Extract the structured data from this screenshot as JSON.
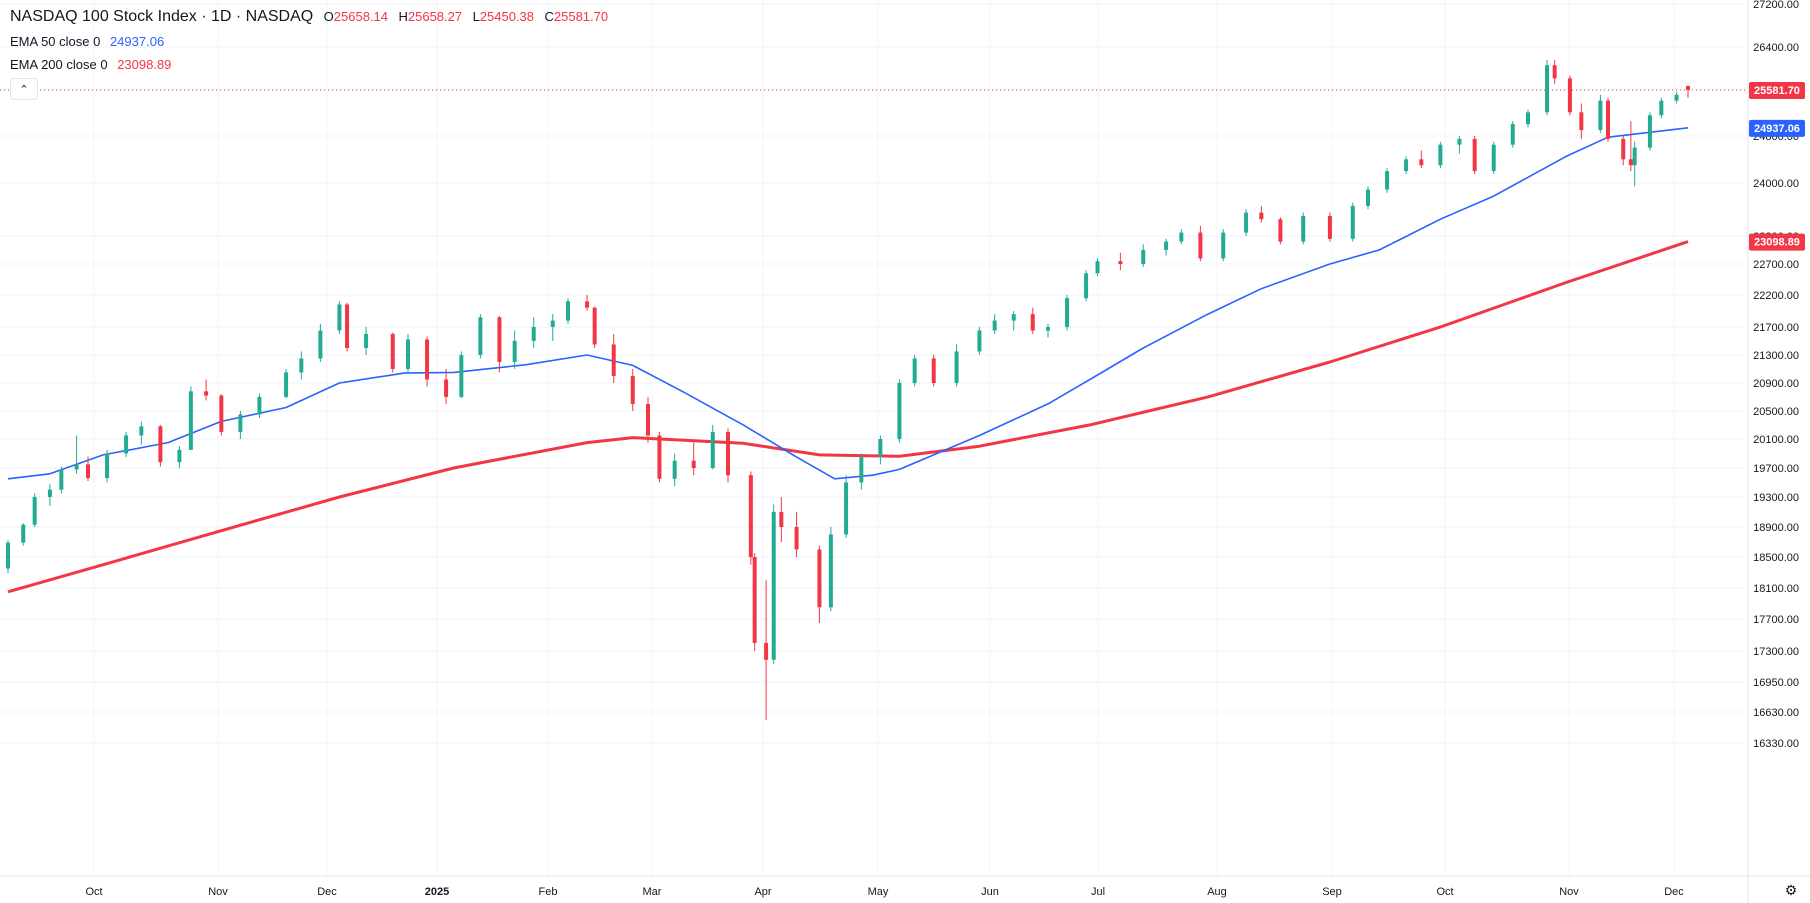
{
  "legend": {
    "title": "NASDAQ 100 Stock Index · 1D · NASDAQ",
    "o_key": "O",
    "o_val": "25658.14",
    "h_key": "H",
    "h_val": "25658.27",
    "l_key": "L",
    "l_val": "25450.38",
    "c_key": "C",
    "c_val": "25581.70",
    "ema50_label": "EMA 50 close 0",
    "ema50_value": "24937.06",
    "ema200_label": "EMA 200 close 0",
    "ema200_value": "23098.89"
  },
  "icons": {
    "collapse": "chevron-up-icon",
    "settings": "gear-icon"
  },
  "colors": {
    "up": "#22ab94",
    "down": "#f23645",
    "ema50": "#2962ff",
    "ema200": "#f23645",
    "grid": "#f0f3fa",
    "last_price_line": "#f23645"
  },
  "chart_data": {
    "type": "candlestick",
    "symbol": "NASDAQ 100 Stock Index",
    "interval": "1D",
    "exchange": "NASDAQ",
    "y_axis_ticks": [
      27200,
      26400,
      25600,
      24800,
      24000,
      23200,
      22700,
      22200,
      21700,
      21300,
      20900,
      20500,
      20100,
      19700,
      19300,
      18900,
      18500,
      18100,
      17700,
      17300,
      16950,
      16630,
      16330
    ],
    "y_axis_tick_labels": [
      "27200.00",
      "26400.00",
      "25600.00",
      "24800.00",
      "24000.00",
      "23200.00",
      "22700.00",
      "22200.00",
      "21700.00",
      "21300.00",
      "20900.00",
      "20500.00",
      "20100.00",
      "19700.00",
      "19300.00",
      "18900.00",
      "18500.00",
      "18100.00",
      "17700.00",
      "17300.00",
      "16950.00",
      "16630.00",
      "16330.00"
    ],
    "y_axis_log_scale": true,
    "x_axis_labels": [
      "Oct",
      "Nov",
      "Dec",
      "2025",
      "Feb",
      "Mar",
      "Apr",
      "May",
      "Jun",
      "Jul",
      "Aug",
      "Sep",
      "Oct",
      "Nov",
      "Dec"
    ],
    "last_price": 25581.7,
    "series": [
      {
        "name": "EMA 50 close 0",
        "type": "line",
        "last_value": 24937.06,
        "points": [
          [
            "2024-09-20",
            19550
          ],
          [
            "2024-10-01",
            19620
          ],
          [
            "2024-10-15",
            19880
          ],
          [
            "2024-11-01",
            20050
          ],
          [
            "2024-11-15",
            20350
          ],
          [
            "2024-12-02",
            20550
          ],
          [
            "2024-12-16",
            20900
          ],
          [
            "2025-01-02",
            21040
          ],
          [
            "2025-01-15",
            21050
          ],
          [
            "2025-02-03",
            21160
          ],
          [
            "2025-02-19",
            21300
          ],
          [
            "2025-03-03",
            21150
          ],
          [
            "2025-03-17",
            20750
          ],
          [
            "2025-04-01",
            20300
          ],
          [
            "2025-04-15",
            19850
          ],
          [
            "2025-04-25",
            19550
          ],
          [
            "2025-05-05",
            19600
          ],
          [
            "2025-05-12",
            19680
          ],
          [
            "2025-06-02",
            20150
          ],
          [
            "2025-06-20",
            20600
          ],
          [
            "2025-07-01",
            20950
          ],
          [
            "2025-07-15",
            21400
          ],
          [
            "2025-08-01",
            21900
          ],
          [
            "2025-08-15",
            22300
          ],
          [
            "2025-09-02",
            22700
          ],
          [
            "2025-09-15",
            22950
          ],
          [
            "2025-10-01",
            23450
          ],
          [
            "2025-10-15",
            23800
          ],
          [
            "2025-11-03",
            24450
          ],
          [
            "2025-11-14",
            24780
          ],
          [
            "2025-12-05",
            24937.06
          ]
        ]
      },
      {
        "name": "EMA 200 close 0",
        "type": "line",
        "last_value": 23098.89,
        "points": [
          [
            "2024-09-20",
            18050
          ],
          [
            "2024-10-15",
            18400
          ],
          [
            "2024-11-15",
            18850
          ],
          [
            "2024-12-16",
            19300
          ],
          [
            "2025-01-15",
            19700
          ],
          [
            "2025-02-19",
            20050
          ],
          [
            "2025-03-03",
            20120
          ],
          [
            "2025-04-01",
            20040
          ],
          [
            "2025-04-21",
            19880
          ],
          [
            "2025-05-12",
            19860
          ],
          [
            "2025-06-02",
            20000
          ],
          [
            "2025-07-01",
            20300
          ],
          [
            "2025-08-01",
            20700
          ],
          [
            "2025-09-02",
            21200
          ],
          [
            "2025-10-01",
            21700
          ],
          [
            "2025-11-03",
            22400
          ],
          [
            "2025-12-05",
            23098.89
          ]
        ]
      }
    ],
    "candles": [
      [
        "2024-09-20",
        18350,
        18720,
        18290,
        18690
      ],
      [
        "2024-09-24",
        18690,
        18950,
        18650,
        18930
      ],
      [
        "2024-09-27",
        18930,
        19350,
        18900,
        19300
      ],
      [
        "2024-10-01",
        19300,
        19480,
        19180,
        19400
      ],
      [
        "2024-10-04",
        19400,
        19720,
        19350,
        19680
      ],
      [
        "2024-10-08",
        19680,
        20150,
        19620,
        19750
      ],
      [
        "2024-10-11",
        19750,
        19860,
        19520,
        19560
      ],
      [
        "2024-10-16",
        19560,
        19950,
        19500,
        19900
      ],
      [
        "2024-10-21",
        19900,
        20200,
        19850,
        20150
      ],
      [
        "2024-10-25",
        20150,
        20350,
        20020,
        20280
      ],
      [
        "2024-10-30",
        20280,
        20300,
        19720,
        19780
      ],
      [
        "2024-11-04",
        19780,
        20000,
        19700,
        19950
      ],
      [
        "2024-11-07",
        19950,
        20850,
        19950,
        20780
      ],
      [
        "2024-11-11",
        20780,
        20950,
        20650,
        20720
      ],
      [
        "2024-11-15",
        20720,
        20740,
        20150,
        20200
      ],
      [
        "2024-11-20",
        20200,
        20500,
        20100,
        20450
      ],
      [
        "2024-11-25",
        20450,
        20750,
        20400,
        20700
      ],
      [
        "2024-12-02",
        20700,
        21100,
        20680,
        21050
      ],
      [
        "2024-12-06",
        21050,
        21350,
        20950,
        21250
      ],
      [
        "2024-12-11",
        21250,
        21750,
        21200,
        21650
      ],
      [
        "2024-12-16",
        21650,
        22100,
        21600,
        22050
      ],
      [
        "2024-12-18",
        22050,
        22080,
        21350,
        21400
      ],
      [
        "2024-12-23",
        21400,
        21700,
        21300,
        21600
      ],
      [
        "2024-12-30",
        21600,
        21620,
        21050,
        21100
      ],
      [
        "2025-01-03",
        21100,
        21600,
        21050,
        21520
      ],
      [
        "2025-01-08",
        21520,
        21560,
        20850,
        20950
      ],
      [
        "2025-01-13",
        20950,
        21100,
        20600,
        20700
      ],
      [
        "2025-01-17",
        20700,
        21350,
        20680,
        21300
      ],
      [
        "2025-01-22",
        21300,
        21900,
        21250,
        21850
      ],
      [
        "2025-01-27",
        21850,
        21870,
        21050,
        21200
      ],
      [
        "2025-01-31",
        21200,
        21650,
        21100,
        21500
      ],
      [
        "2025-02-05",
        21500,
        21850,
        21400,
        21700
      ],
      [
        "2025-02-10",
        21700,
        21900,
        21500,
        21800
      ],
      [
        "2025-02-14",
        21800,
        22150,
        21750,
        22100
      ],
      [
        "2025-02-19",
        22100,
        22200,
        21950,
        22000
      ],
      [
        "2025-02-21",
        22000,
        22020,
        21400,
        21450
      ],
      [
        "2025-02-26",
        21450,
        21600,
        20900,
        21000
      ],
      [
        "2025-03-03",
        21000,
        21100,
        20500,
        20600
      ],
      [
        "2025-03-07",
        20600,
        20700,
        20050,
        20150
      ],
      [
        "2025-03-10",
        20150,
        20200,
        19500,
        19550
      ],
      [
        "2025-03-14",
        19550,
        19900,
        19450,
        19800
      ],
      [
        "2025-03-19",
        19800,
        20050,
        19600,
        19700
      ],
      [
        "2025-03-24",
        19700,
        20300,
        19680,
        20200
      ],
      [
        "2025-03-28",
        20200,
        20250,
        19500,
        19600
      ],
      [
        "2025-04-03",
        19600,
        19650,
        18400,
        18500
      ],
      [
        "2025-04-04",
        18500,
        18550,
        17300,
        17400
      ],
      [
        "2025-04-07",
        17400,
        18200,
        16550,
        17200
      ],
      [
        "2025-04-09",
        17200,
        19200,
        17150,
        19100
      ],
      [
        "2025-04-11",
        19100,
        19300,
        18700,
        18900
      ],
      [
        "2025-04-15",
        18900,
        19100,
        18500,
        18600
      ],
      [
        "2025-04-21",
        18600,
        18650,
        17650,
        17850
      ],
      [
        "2025-04-24",
        17850,
        18900,
        17800,
        18800
      ],
      [
        "2025-04-28",
        18800,
        19600,
        18750,
        19500
      ],
      [
        "2025-05-02",
        19500,
        19900,
        19400,
        19850
      ],
      [
        "2025-05-07",
        19850,
        20150,
        19750,
        20100
      ],
      [
        "2025-05-12",
        20100,
        20950,
        20050,
        20900
      ],
      [
        "2025-05-16",
        20900,
        21300,
        20850,
        21250
      ],
      [
        "2025-05-21",
        21250,
        21300,
        20850,
        20900
      ],
      [
        "2025-05-27",
        20900,
        21450,
        20850,
        21350
      ],
      [
        "2025-06-02",
        21350,
        21700,
        21300,
        21650
      ],
      [
        "2025-06-06",
        21650,
        21900,
        21600,
        21800
      ],
      [
        "2025-06-11",
        21800,
        21950,
        21650,
        21900
      ],
      [
        "2025-06-16",
        21900,
        22000,
        21600,
        21650
      ],
      [
        "2025-06-20",
        21650,
        21750,
        21550,
        21700
      ],
      [
        "2025-06-25",
        21700,
        22200,
        21650,
        22150
      ],
      [
        "2025-06-30",
        22150,
        22600,
        22100,
        22550
      ],
      [
        "2025-07-03",
        22550,
        22800,
        22500,
        22750
      ],
      [
        "2025-07-09",
        22750,
        22900,
        22600,
        22700
      ],
      [
        "2025-07-15",
        22700,
        23050,
        22650,
        22950
      ],
      [
        "2025-07-21",
        22950,
        23150,
        22850,
        23100
      ],
      [
        "2025-07-25",
        23100,
        23300,
        23050,
        23250
      ],
      [
        "2025-07-30",
        23250,
        23350,
        22750,
        22800
      ],
      [
        "2025-08-05",
        22800,
        23300,
        22750,
        23250
      ],
      [
        "2025-08-11",
        23250,
        23600,
        23200,
        23550
      ],
      [
        "2025-08-15",
        23550,
        23650,
        23400,
        23450
      ],
      [
        "2025-08-20",
        23450,
        23480,
        23050,
        23100
      ],
      [
        "2025-08-26",
        23100,
        23550,
        23050,
        23500
      ],
      [
        "2025-09-02",
        23500,
        23550,
        23100,
        23150
      ],
      [
        "2025-09-08",
        23150,
        23700,
        23100,
        23650
      ],
      [
        "2025-09-12",
        23650,
        23950,
        23600,
        23900
      ],
      [
        "2025-09-17",
        23900,
        24250,
        23850,
        24200
      ],
      [
        "2025-09-22",
        24200,
        24450,
        24150,
        24400
      ],
      [
        "2025-09-26",
        24400,
        24550,
        24250,
        24300
      ],
      [
        "2025-10-01",
        24300,
        24700,
        24250,
        24650
      ],
      [
        "2025-10-06",
        24650,
        24800,
        24500,
        24750
      ],
      [
        "2025-10-10",
        24750,
        24800,
        24150,
        24200
      ],
      [
        "2025-10-15",
        24200,
        24700,
        24150,
        24650
      ],
      [
        "2025-10-20",
        24650,
        25050,
        24600,
        25000
      ],
      [
        "2025-10-24",
        25000,
        25250,
        24950,
        25200
      ],
      [
        "2025-10-29",
        25200,
        26150,
        25150,
        26050
      ],
      [
        "2025-10-31",
        26050,
        26150,
        25700,
        25800
      ],
      [
        "2025-11-04",
        25800,
        25850,
        25150,
        25200
      ],
      [
        "2025-11-07",
        25200,
        25350,
        24750,
        24900
      ],
      [
        "2025-11-12",
        24900,
        25500,
        24850,
        25400
      ],
      [
        "2025-11-14",
        25400,
        25450,
        24700,
        24750
      ],
      [
        "2025-11-18",
        24750,
        24800,
        24300,
        24400
      ],
      [
        "2025-11-20",
        24400,
        25050,
        24200,
        24300
      ],
      [
        "2025-11-21",
        24300,
        24700,
        23950,
        24600
      ],
      [
        "2025-11-25",
        24600,
        25200,
        24550,
        25150
      ],
      [
        "2025-11-28",
        25150,
        25450,
        25100,
        25400
      ],
      [
        "2025-12-02",
        25400,
        25550,
        25350,
        25500
      ],
      [
        "2025-12-05",
        25658.14,
        25658.27,
        25450.38,
        25581.7
      ]
    ]
  }
}
